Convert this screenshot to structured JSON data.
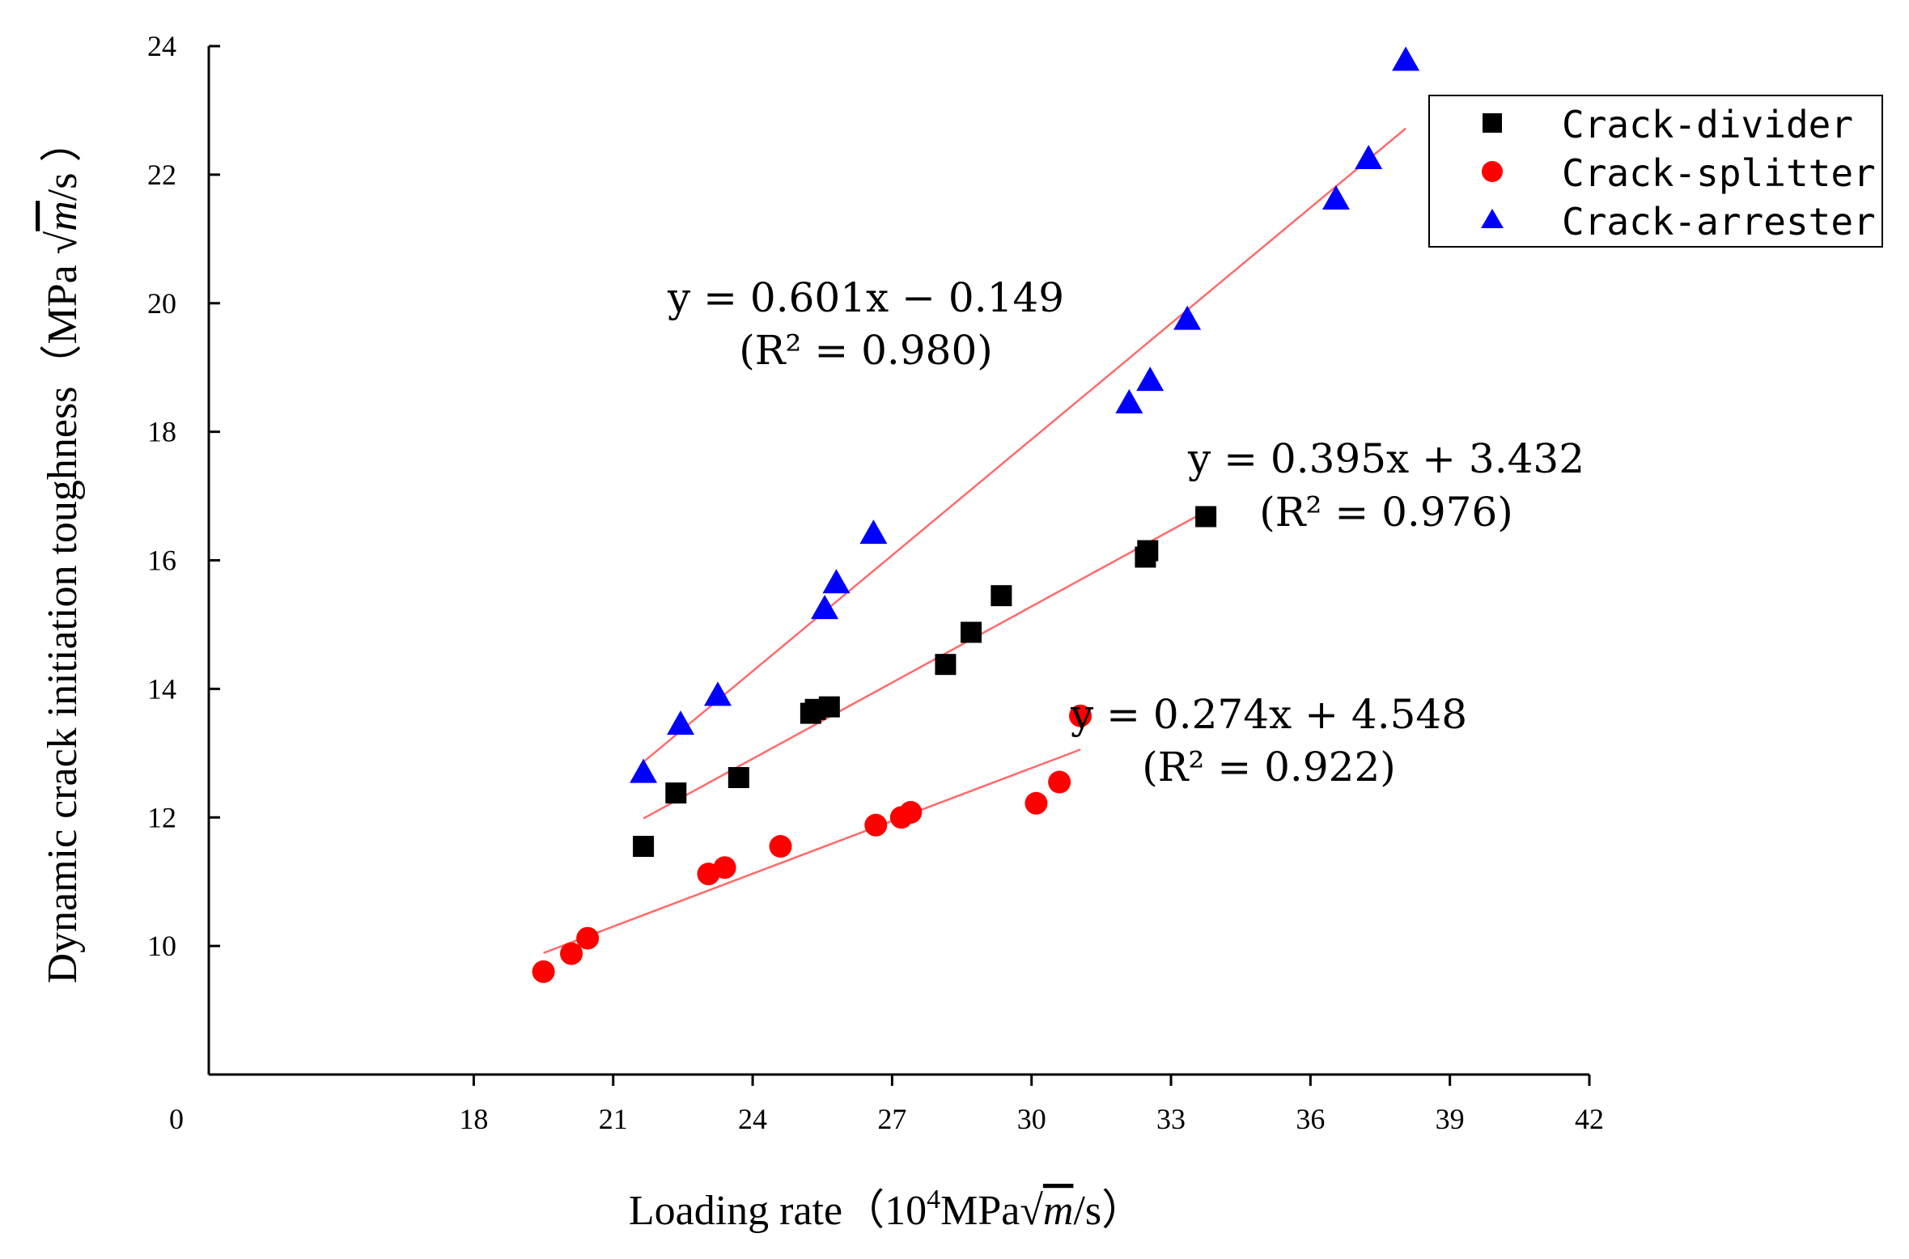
{
  "chart_data": {
    "type": "scatter",
    "title": "",
    "xlabel_parts": {
      "main": "Loading rate（10",
      "sup": "4",
      "mpa": "MPa",
      "sqrt": "√",
      "m": "m",
      "tail": "/s）"
    },
    "ylabel_parts": {
      "main": "Dynamic crack initiation toughness（MPa ",
      "sqrt": "√",
      "m": "m",
      "tail": "/s ）"
    },
    "xlim": [
      12.3,
      42
    ],
    "ylim": [
      8,
      24
    ],
    "x_origin_label": "0",
    "xticks": [
      18,
      21,
      24,
      27,
      30,
      33,
      36,
      39,
      42
    ],
    "yticks": [
      10,
      12,
      14,
      16,
      18,
      20,
      22,
      24
    ],
    "legend_position": "top-right",
    "series": [
      {
        "name": "Crack-divider",
        "marker": "square",
        "color": "#000000",
        "x": [
          21.65,
          22.35,
          23.7,
          25.25,
          25.35,
          25.65,
          28.15,
          28.7,
          29.35,
          32.45,
          32.5,
          33.75
        ],
        "y": [
          11.55,
          12.38,
          12.62,
          13.62,
          13.68,
          13.72,
          14.38,
          14.88,
          15.45,
          16.05,
          16.15,
          16.68
        ],
        "fit": {
          "slope": 0.395,
          "intercept": 3.432,
          "x_range": [
            21.65,
            33.75
          ],
          "color": "#ff6b6b"
        }
      },
      {
        "name": "Crack-splitter",
        "marker": "circle",
        "color": "#ff0000",
        "x": [
          19.5,
          20.1,
          20.45,
          23.05,
          23.4,
          24.6,
          26.65,
          27.2,
          27.4,
          30.1,
          30.6,
          31.05
        ],
        "y": [
          9.6,
          9.88,
          10.12,
          11.12,
          11.22,
          11.55,
          11.88,
          12.0,
          12.08,
          12.22,
          12.55,
          13.58
        ],
        "fit": {
          "slope": 0.274,
          "intercept": 4.548,
          "x_range": [
            19.5,
            31.05
          ],
          "color": "#ff6b6b"
        }
      },
      {
        "name": "Crack-arrester",
        "marker": "triangle",
        "color": "#0000ff",
        "x": [
          21.65,
          22.45,
          23.25,
          25.55,
          25.8,
          26.6,
          32.1,
          32.55,
          33.35,
          36.55,
          37.25,
          38.05
        ],
        "y": [
          12.7,
          13.45,
          13.9,
          15.25,
          15.65,
          16.42,
          18.45,
          18.8,
          19.75,
          21.62,
          22.25,
          23.78
        ],
        "fit": {
          "slope": 0.601,
          "intercept": -0.149,
          "x_range": [
            21.65,
            38.05
          ],
          "color": "#ff6b6b"
        }
      }
    ],
    "annotations": [
      {
        "id": "arrester",
        "line1": "y = 0.601x − 0.149",
        "line2": "(R² = 0.980)"
      },
      {
        "id": "divider",
        "line1": "y = 0.395x + 3.432",
        "line2": "(R² = 0.976)"
      },
      {
        "id": "splitter",
        "line1": "y = 0.274x + 4.548",
        "line2": "(R² = 0.922)"
      }
    ]
  }
}
